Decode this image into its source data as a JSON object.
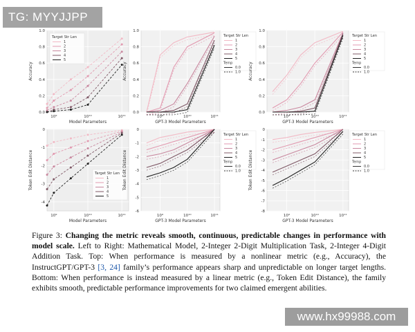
{
  "watermark_top": "TG: MYYJJPP",
  "watermark_bottom": "www.hx99988.com",
  "chart_data": [
    {
      "type": "line",
      "title": "",
      "xlabel": "Model Parameters",
      "ylabel": "Accuracy",
      "x_ticks": [
        "10⁹",
        "10¹⁰",
        "10¹¹"
      ],
      "y_ticks": [
        "0.0",
        "0.2",
        "0.4",
        "0.6",
        "0.8",
        "1.0"
      ],
      "ylim": [
        0,
        1
      ],
      "legend_title": "Target Str Len",
      "legend": [
        "1",
        "2",
        "3",
        "4",
        "5"
      ],
      "x": [
        8.8,
        9.0,
        9.5,
        10.0,
        11.0
      ],
      "series": [
        {
          "name": "1",
          "values": [
            0.1,
            0.22,
            0.4,
            0.55,
            0.9
          ]
        },
        {
          "name": "2",
          "values": [
            0.05,
            0.14,
            0.27,
            0.44,
            0.83
          ]
        },
        {
          "name": "3",
          "values": [
            0.02,
            0.06,
            0.14,
            0.32,
            0.74
          ]
        },
        {
          "name": "4",
          "values": [
            0.0,
            0.03,
            0.06,
            0.18,
            0.66
          ]
        },
        {
          "name": "5",
          "values": [
            0.0,
            0.01,
            0.03,
            0.09,
            0.58
          ]
        }
      ]
    },
    {
      "type": "line",
      "title": "",
      "xlabel": "GPT-3 Model Parameters",
      "ylabel": "Accuracy",
      "x_ticks": [
        "10⁹",
        "10¹⁰",
        "10¹¹"
      ],
      "y_ticks": [
        "0.0",
        "0.2",
        "0.4",
        "0.6",
        "0.8",
        "1.0"
      ],
      "ylim": [
        0,
        1
      ],
      "legend_title": "Target Str Len",
      "legend": [
        "1",
        "2",
        "3",
        "4",
        "5"
      ],
      "legend_temp_title": "Temp",
      "legend_temp": [
        "0.0",
        "1.0"
      ],
      "x": [
        8.5,
        9.0,
        9.5,
        10.0,
        11.0
      ],
      "series": [
        {
          "name": "1",
          "values": [
            0.0,
            0.7,
            0.85,
            0.92,
            0.98
          ]
        },
        {
          "name": "2",
          "values": [
            0.0,
            0.05,
            0.55,
            0.8,
            0.97
          ]
        },
        {
          "name": "3",
          "values": [
            0.0,
            0.02,
            0.1,
            0.35,
            0.93
          ]
        },
        {
          "name": "4",
          "values": [
            0.0,
            0.0,
            0.02,
            0.1,
            0.88
          ]
        },
        {
          "name": "5",
          "values": [
            0.0,
            0.0,
            0.0,
            0.03,
            0.82
          ]
        }
      ]
    },
    {
      "type": "line",
      "title": "",
      "xlabel": "GPT-3 Model Parameters",
      "ylabel": "Accuracy",
      "x_ticks": [
        "10⁹",
        "10¹⁰",
        "10¹¹"
      ],
      "y_ticks": [
        "0.0",
        "0.2",
        "0.4",
        "0.6",
        "0.8",
        "1.0"
      ],
      "ylim": [
        0,
        1
      ],
      "legend_title": "Target Str Len",
      "legend": [
        "1",
        "2",
        "3",
        "4",
        "5"
      ],
      "legend_temp_title": "Temp",
      "legend_temp": [
        "0.0",
        "1.0"
      ],
      "x": [
        8.5,
        9.0,
        9.5,
        10.0,
        11.0
      ],
      "series": [
        {
          "name": "1",
          "values": [
            0.25,
            0.45,
            0.7,
            0.85,
            0.99
          ]
        },
        {
          "name": "2",
          "values": [
            0.05,
            0.15,
            0.35,
            0.6,
            0.98
          ]
        },
        {
          "name": "3",
          "values": [
            0.0,
            0.02,
            0.06,
            0.15,
            0.97
          ]
        },
        {
          "name": "4",
          "values": [
            0.0,
            0.0,
            0.01,
            0.05,
            0.96
          ]
        },
        {
          "name": "5",
          "values": [
            0.0,
            0.0,
            0.0,
            0.01,
            0.94
          ]
        }
      ]
    },
    {
      "type": "line",
      "title": "",
      "xlabel": "Model Parameters",
      "ylabel": "Token Edit Distance",
      "x_ticks": [
        "10⁹",
        "10¹⁰",
        "10¹¹"
      ],
      "y_ticks": [
        "-4",
        "-3",
        "-2",
        "-1",
        "0"
      ],
      "ylim": [
        -4.5,
        0
      ],
      "legend_title": "Target Str Len",
      "legend": [
        "1",
        "2",
        "3",
        "4",
        "5"
      ],
      "x": [
        8.8,
        9.0,
        9.5,
        10.0,
        11.0
      ],
      "series": [
        {
          "name": "1",
          "values": [
            -0.9,
            -0.7,
            -0.5,
            -0.3,
            -0.05
          ]
        },
        {
          "name": "2",
          "values": [
            -1.7,
            -1.35,
            -1.0,
            -0.65,
            -0.1
          ]
        },
        {
          "name": "3",
          "values": [
            -2.5,
            -2.05,
            -1.55,
            -1.05,
            -0.15
          ]
        },
        {
          "name": "4",
          "values": [
            -3.3,
            -2.75,
            -2.1,
            -1.45,
            -0.2
          ]
        },
        {
          "name": "5",
          "values": [
            -4.2,
            -3.5,
            -2.7,
            -1.9,
            -0.3
          ]
        }
      ]
    },
    {
      "type": "line",
      "title": "",
      "xlabel": "GPT-3 Model Parameters",
      "ylabel": "Token Edit Distance",
      "x_ticks": [
        "10⁹",
        "10¹⁰",
        "10¹¹"
      ],
      "y_ticks": [
        "-6",
        "-5",
        "-4",
        "-3",
        "-2",
        "-1",
        "0"
      ],
      "ylim": [
        -6,
        0
      ],
      "legend_title": "Target Str Len",
      "legend": [
        "1",
        "2",
        "3",
        "4",
        "5"
      ],
      "legend_temp_title": "Temp",
      "legend_temp": [
        "0.0",
        "1.0"
      ],
      "x": [
        8.5,
        9.0,
        9.5,
        10.0,
        11.0
      ],
      "series": [
        {
          "name": "1",
          "values": [
            -1.0,
            -0.6,
            -0.4,
            -0.2,
            0.0
          ]
        },
        {
          "name": "2",
          "values": [
            -1.5,
            -1.2,
            -0.9,
            -0.6,
            0.0
          ]
        },
        {
          "name": "3",
          "values": [
            -2.0,
            -1.8,
            -1.5,
            -1.0,
            0.0
          ]
        },
        {
          "name": "4",
          "values": [
            -2.8,
            -2.5,
            -2.0,
            -1.5,
            0.0
          ]
        },
        {
          "name": "5",
          "values": [
            -3.5,
            -3.2,
            -2.8,
            -2.2,
            0.0
          ]
        }
      ]
    },
    {
      "type": "line",
      "title": "",
      "xlabel": "GPT-3 Model Parameters",
      "ylabel": "Token Edit Distance",
      "x_ticks": [
        "10⁹",
        "10¹⁰",
        "10¹¹"
      ],
      "y_ticks": [
        "-8",
        "-7",
        "-6",
        "-5",
        "-4",
        "-3",
        "-2",
        "-1",
        "0"
      ],
      "ylim": [
        -8,
        0
      ],
      "legend_title": "Target Str Len",
      "legend": [
        "1",
        "2",
        "3",
        "4",
        "5"
      ],
      "legend_temp_title": "Temp",
      "legend_temp": [
        "0.0",
        "1.0"
      ],
      "x": [
        8.5,
        9.0,
        9.5,
        10.0,
        11.0
      ],
      "series": [
        {
          "name": "1",
          "values": [
            -1.0,
            -0.8,
            -0.5,
            -0.3,
            0.0
          ]
        },
        {
          "name": "2",
          "values": [
            -2.0,
            -1.6,
            -1.2,
            -0.8,
            0.0
          ]
        },
        {
          "name": "3",
          "values": [
            -3.0,
            -2.5,
            -2.0,
            -1.5,
            0.0
          ]
        },
        {
          "name": "4",
          "values": [
            -4.2,
            -3.6,
            -3.0,
            -2.4,
            0.0
          ]
        },
        {
          "name": "5",
          "values": [
            -5.5,
            -4.8,
            -4.0,
            -3.2,
            -0.2
          ]
        }
      ]
    }
  ],
  "colors": [
    "#f2b9c5",
    "#e29ab0",
    "#c9889f",
    "#7f5866",
    "#1f1f1f"
  ],
  "caption": {
    "label": "Figure 3:",
    "bold": "Changing the metric reveals smooth, continuous, predictable changes in performance with model scale.",
    "text1": "Left to Right: Mathematical Model, 2-Integer 2-Digit Multiplication Task, 2-Integer 4-Digit Addition Task. Top: When performance is measured by a nonlinear metric (e.g., Accuracy), the InstructGPT/GPT-3",
    "cite": "[3, 24]",
    "text2": "family’s performance appears sharp and unpredictable on longer target lengths. Bottom: When performance is instead measured by a linear metric (e.g., Token Edit Distance), the family exhibits smooth, predictable performance improvements for two claimed emergent abilities."
  }
}
